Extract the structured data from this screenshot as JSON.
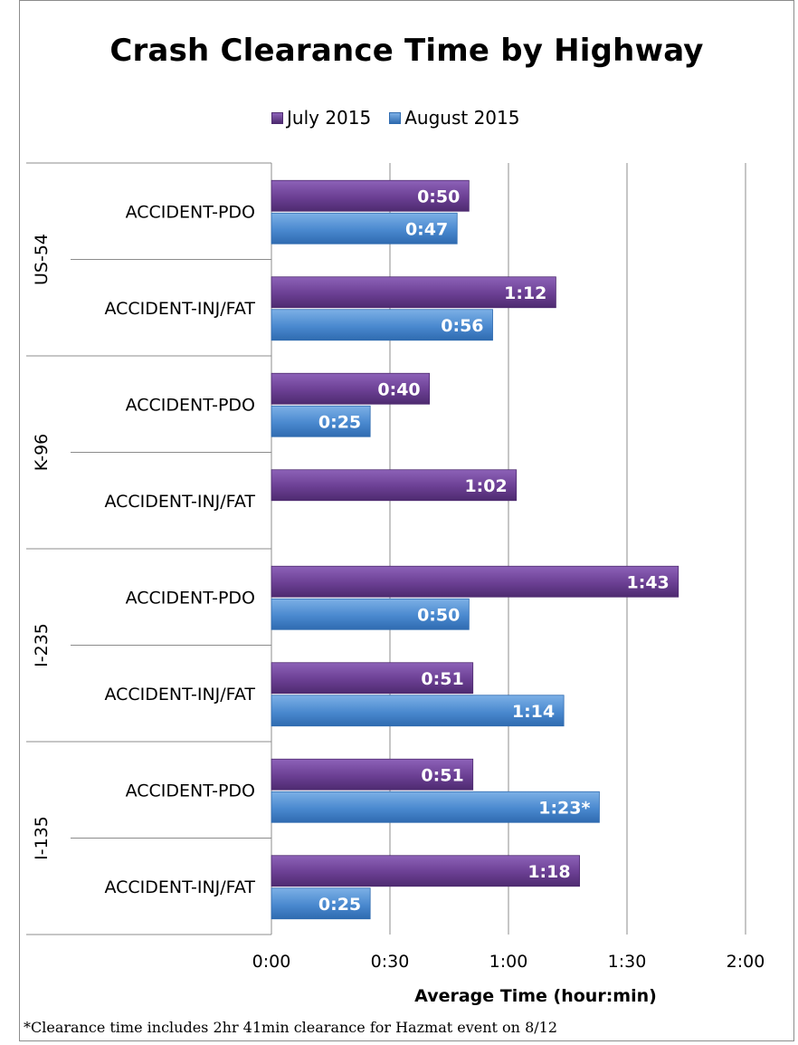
{
  "chart_data": {
    "type": "bar",
    "orientation": "horizontal",
    "title": "Crash Clearance Time by Highway",
    "xlabel": "Average Time (hour:min)",
    "x_ticks": [
      "0:00",
      "0:30",
      "1:00",
      "1:30",
      "2:00"
    ],
    "xlim_minutes": [
      0,
      120
    ],
    "grid": true,
    "legend_position": "top",
    "groups": [
      "US-54",
      "K-96",
      "I-235",
      "I-135"
    ],
    "categories": [
      "ACCIDENT-PDO",
      "ACCIDENT-INJ/FAT"
    ],
    "series": [
      {
        "name": "July 2015",
        "color": "#6b3f93",
        "values_minutes": [
          50,
          72,
          40,
          62,
          103,
          51,
          51,
          78
        ],
        "labels": [
          "0:50",
          "1:12",
          "0:40",
          "1:02",
          "1:43",
          "0:51",
          "0:51",
          "1:18"
        ]
      },
      {
        "name": "August 2015",
        "color": "#4a89cf",
        "values_minutes": [
          47,
          56,
          25,
          null,
          50,
          74,
          83,
          25
        ],
        "labels": [
          "0:47",
          "0:56",
          "0:25",
          "",
          "0:50",
          "1:14",
          "1:23*",
          "0:25"
        ]
      }
    ],
    "footnote": "*Clearance time includes 2hr 41min clearance for Hazmat event on 8/12"
  }
}
